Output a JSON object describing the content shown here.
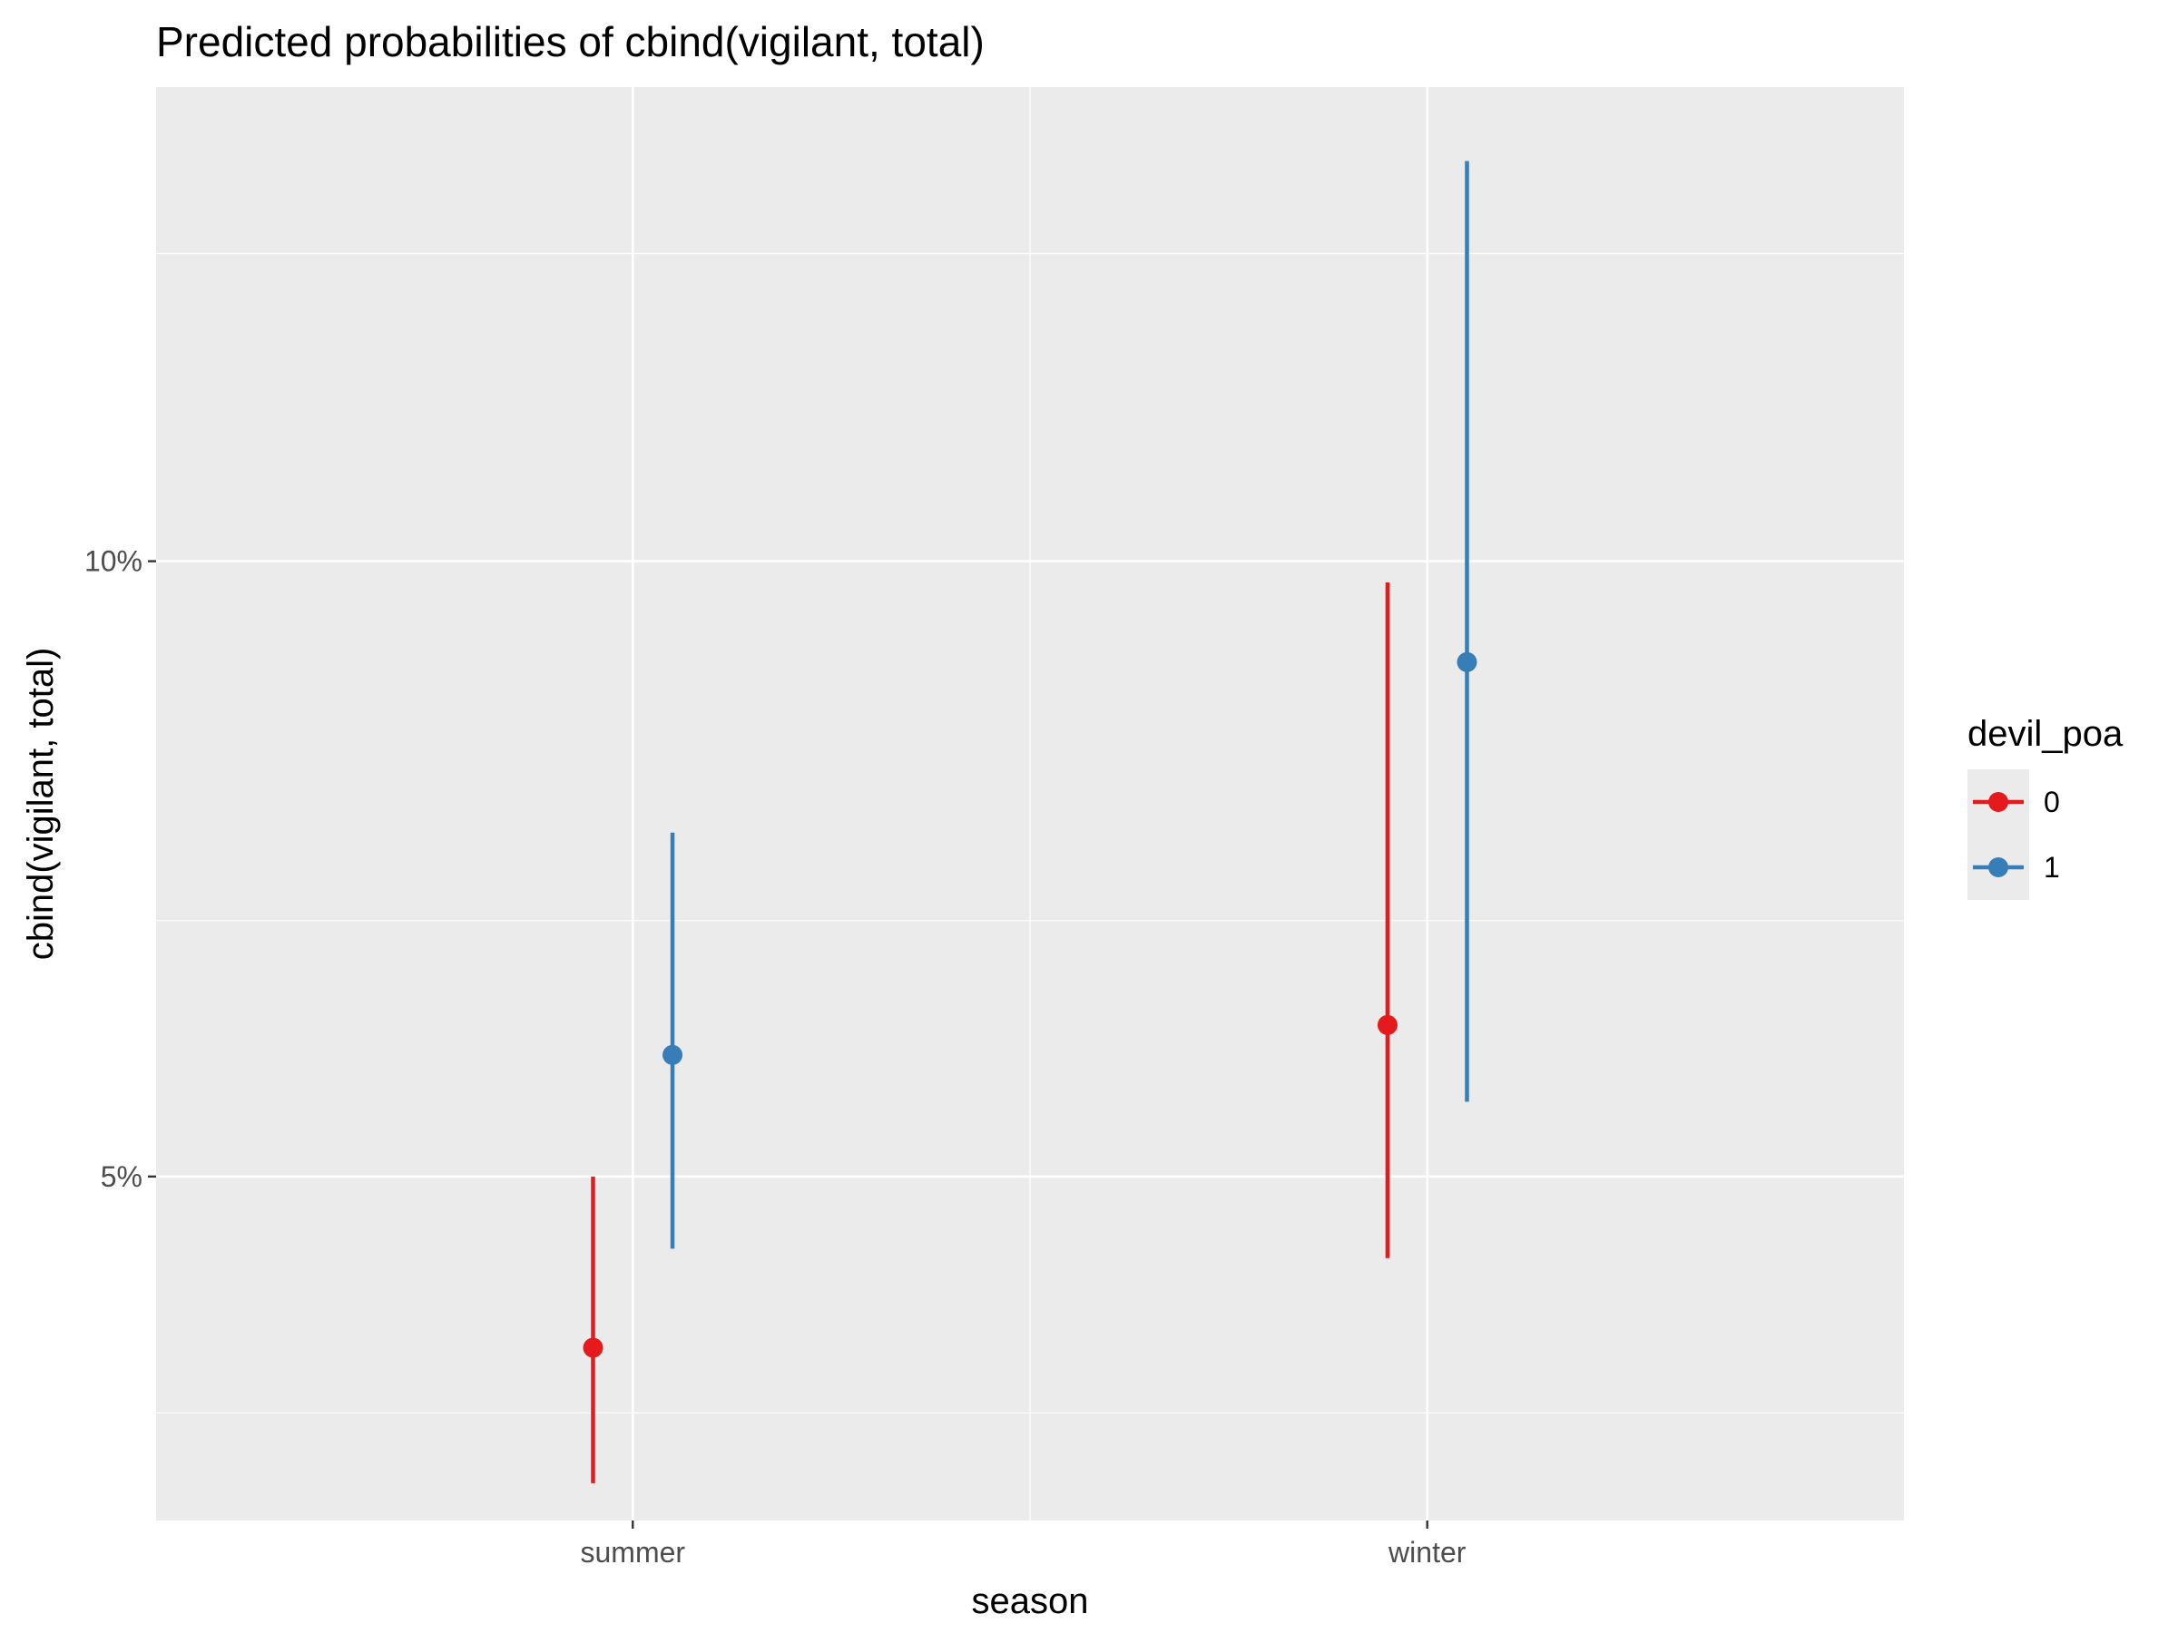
{
  "chart_data": {
    "type": "scatter",
    "title": "Predicted probabilities of cbind(vigilant, total)",
    "xlabel": "season",
    "ylabel": "cbind(vigilant, total)",
    "categories": [
      "summer",
      "winter"
    ],
    "y_scale": "logit",
    "y_ticks": [
      {
        "value": 0.05,
        "label": "5%"
      },
      {
        "value": 0.1,
        "label": "10%"
      }
    ],
    "y_minor_ticks": [
      0.038,
      0.067,
      0.139
    ],
    "ylim": [
      0.0335,
      0.165
    ],
    "grid": true,
    "legend": {
      "title": "devil_poa",
      "position": "right",
      "entries": [
        {
          "label": "0",
          "color": "#e41a1c"
        },
        {
          "label": "1",
          "color": "#377eb8"
        }
      ]
    },
    "series": [
      {
        "legend_label": "0",
        "color": "#e41a1c",
        "points": [
          {
            "category": "summer",
            "estimate": 0.041,
            "low": 0.035,
            "high": 0.05
          },
          {
            "category": "winter",
            "estimate": 0.0595,
            "low": 0.0455,
            "high": 0.0977
          }
        ]
      },
      {
        "legend_label": "1",
        "color": "#377eb8",
        "points": [
          {
            "category": "summer",
            "estimate": 0.0575,
            "low": 0.046,
            "high": 0.074
          },
          {
            "category": "winter",
            "estimate": 0.0895,
            "low": 0.0545,
            "high": 0.153
          }
        ]
      }
    ],
    "colors": {
      "panel_background": "#ebebeb",
      "grid": "#ffffff",
      "tick_label": "#4d4d4d"
    }
  }
}
